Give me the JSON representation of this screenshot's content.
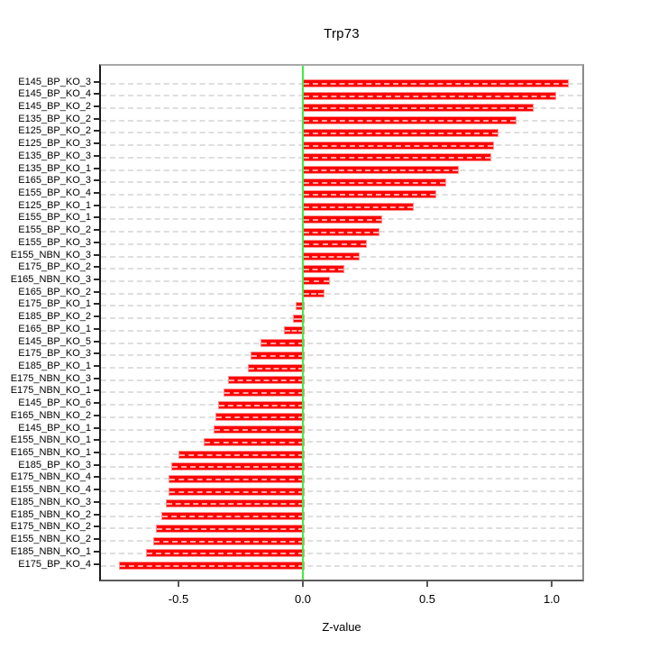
{
  "chart_data": {
    "type": "bar",
    "orientation": "horizontal",
    "title": "Trp73",
    "xlabel": "Z-value",
    "ylabel": "",
    "xlim": [
      -0.82,
      1.13
    ],
    "x_ticks": [
      -0.5,
      0.0,
      0.5,
      1.0
    ],
    "x_tick_labels": [
      "-0.5",
      "0.0",
      "0.5",
      "1.0"
    ],
    "grid": "dashed-horizontal-per-category",
    "zero_reference_line": 0.0,
    "categories": [
      "E145_BP_KO_3",
      "E145_BP_KO_4",
      "E145_BP_KO_2",
      "E135_BP_KO_2",
      "E125_BP_KO_2",
      "E125_BP_KO_3",
      "E135_BP_KO_3",
      "E135_BP_KO_1",
      "E165_BP_KO_3",
      "E155_BP_KO_4",
      "E125_BP_KO_1",
      "E155_BP_KO_1",
      "E155_BP_KO_2",
      "E155_BP_KO_3",
      "E155_NBN_KO_3",
      "E175_BP_KO_2",
      "E165_NBN_KO_3",
      "E165_BP_KO_2",
      "E175_BP_KO_1",
      "E185_BP_KO_2",
      "E165_BP_KO_1",
      "E145_BP_KO_5",
      "E175_BP_KO_3",
      "E185_BP_KO_1",
      "E175_NBN_KO_3",
      "E175_NBN_KO_1",
      "E145_BP_KO_6",
      "E165_NBN_KO_2",
      "E145_BP_KO_1",
      "E155_NBN_KO_1",
      "E165_NBN_KO_1",
      "E185_BP_KO_3",
      "E175_NBN_KO_4",
      "E155_NBN_KO_4",
      "E185_NBN_KO_3",
      "E185_NBN_KO_2",
      "E175_NBN_KO_2",
      "E155_NBN_KO_2",
      "E185_NBN_KO_1",
      "E175_BP_KO_4"
    ],
    "values": [
      1.06,
      1.01,
      0.92,
      0.85,
      0.78,
      0.76,
      0.75,
      0.62,
      0.57,
      0.53,
      0.44,
      0.31,
      0.3,
      0.25,
      0.22,
      0.16,
      0.1,
      0.08,
      -0.03,
      -0.04,
      -0.075,
      -0.17,
      -0.21,
      -0.22,
      -0.3,
      -0.32,
      -0.34,
      -0.35,
      -0.36,
      -0.4,
      -0.5,
      -0.53,
      -0.54,
      -0.54,
      -0.55,
      -0.57,
      -0.59,
      -0.6,
      -0.63,
      -0.74
    ],
    "colors": {
      "bar_fill": "#ff0000",
      "bar_border": "#ff9090",
      "zero_line": "#3dee3d",
      "grid_line": "#dedede",
      "axis_left": "#1a1a1a",
      "axis_bottom": "#5a5a5a",
      "box_top_right": "#a0a0a0",
      "background": "#ffffff"
    }
  }
}
